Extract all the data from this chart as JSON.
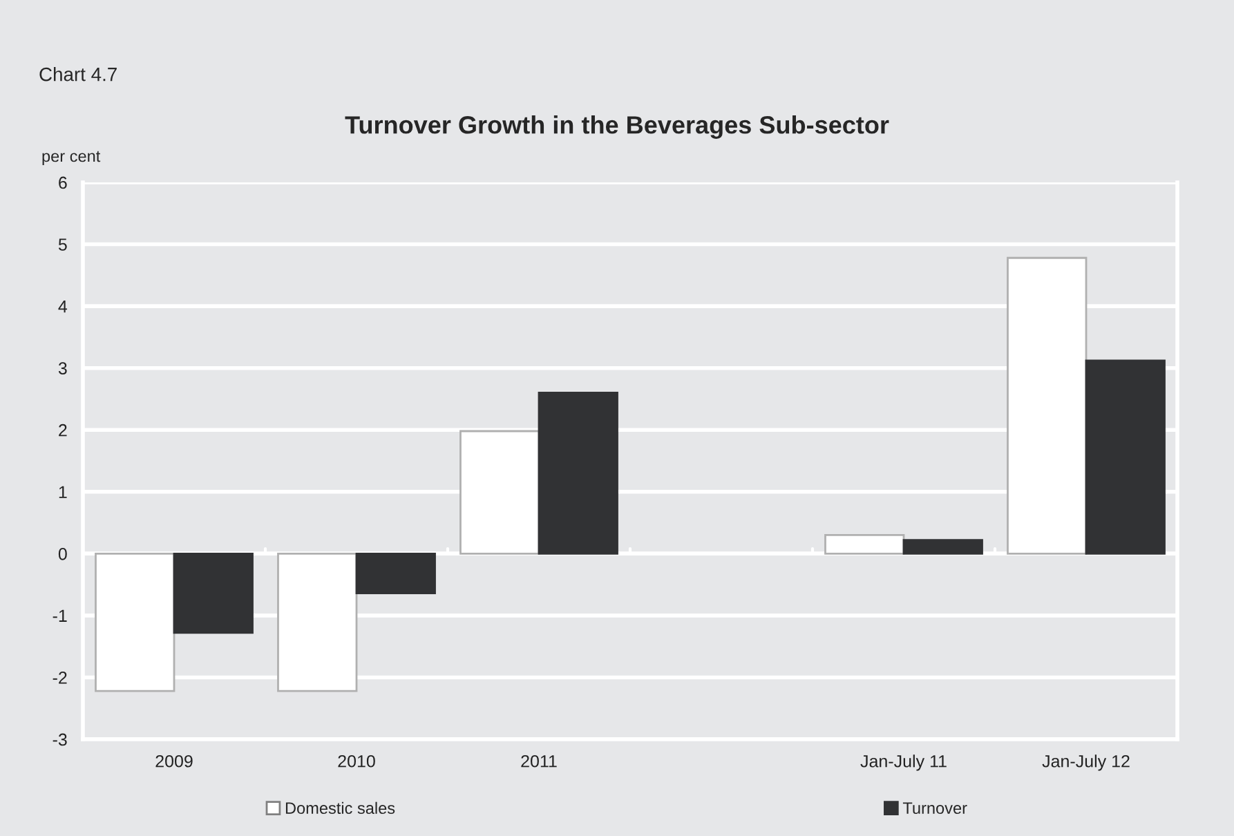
{
  "chart_data": {
    "type": "bar",
    "title": "Turnover Growth in the Beverages Sub-sector",
    "subtitle": "Chart 4.7",
    "ylabel": "per cent",
    "categories": [
      "2009",
      "2010",
      "2011",
      null,
      "Jan-July 11",
      "Jan-July 12"
    ],
    "series": [
      {
        "name": "Domestic sales",
        "color": "#ffffff",
        "values": [
          -2.22,
          -2.22,
          1.98,
          null,
          0.3,
          4.78
        ]
      },
      {
        "name": "Turnover",
        "color": "#313234",
        "values": [
          -1.28,
          -0.64,
          2.6,
          null,
          0.22,
          3.12
        ]
      }
    ],
    "ylim": [
      -3,
      6
    ],
    "yticks": [
      -3,
      -2,
      -1,
      0,
      1,
      2,
      3,
      4,
      5,
      6
    ],
    "grid": "y",
    "legend": "bottom"
  }
}
